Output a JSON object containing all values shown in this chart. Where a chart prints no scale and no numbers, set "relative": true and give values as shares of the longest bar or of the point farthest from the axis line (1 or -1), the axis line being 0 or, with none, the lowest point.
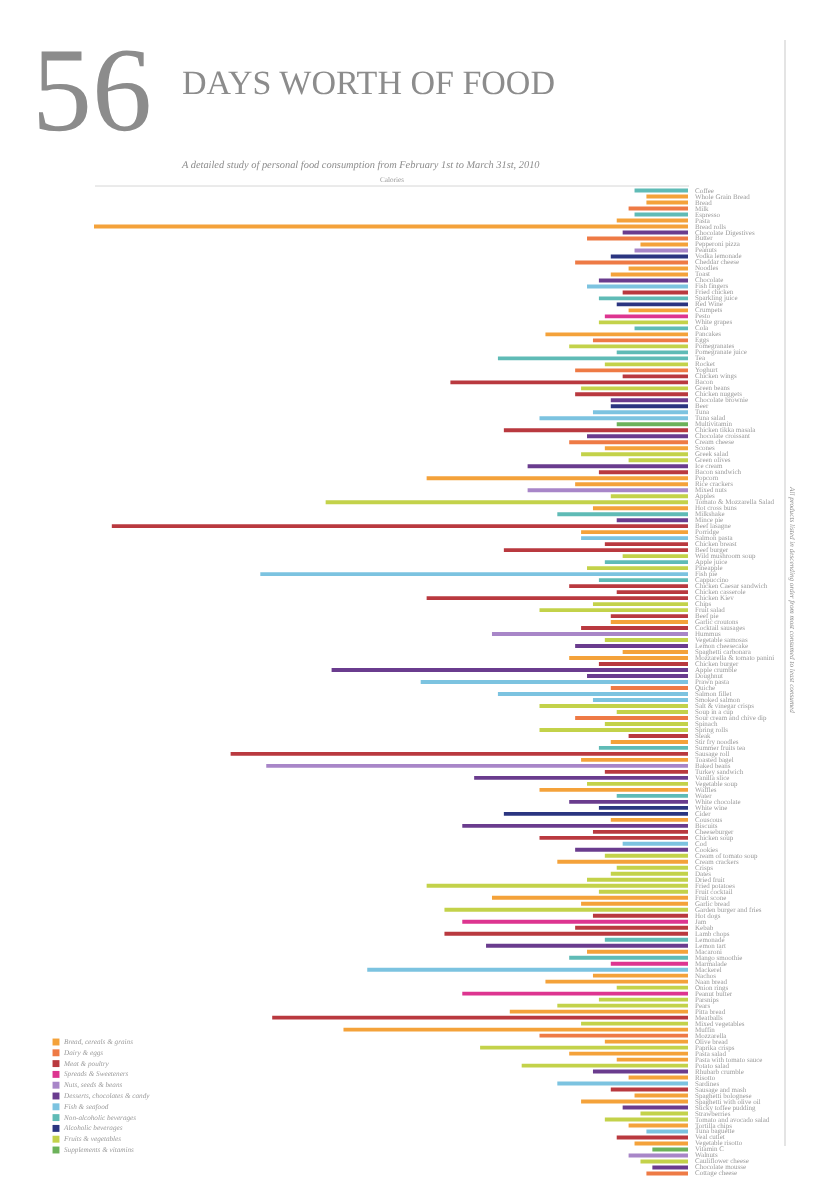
{
  "chart_data": {
    "type": "bar",
    "orientation": "horizontal",
    "relative": true,
    "title": "56 DAYS WORTH OF FOOD",
    "subtitle": "A detailed study of personal food consumption from February 1st to March 31st, 2010",
    "xlabel": "Calories",
    "annotations": [
      "All products listed in descending order from most consumed to least consumed"
    ],
    "legend": "bottom left",
    "categories": [
      "Coffee",
      "Whole Grain Bread",
      "Bread",
      "Milk",
      "Espresso",
      "Pasta",
      "Bread rolls",
      "Chocolate Digestives",
      "Butter",
      "Pepperoni pizza",
      "Peanuts",
      "Vodka lemonade",
      "Cheddar cheese",
      "Noodles",
      "Toast",
      "Chocolate",
      "Fish fingers",
      "Fried chicken",
      "Sparkling juice",
      "Red Wine",
      "Crumpets",
      "Pesto",
      "White grapes",
      "Cola",
      "Pancakes",
      "Eggs",
      "Pomegranates",
      "Pomegranate juice",
      "Tea",
      "Rocket",
      "Yoghurt",
      "Chicken wings",
      "Bacon",
      "Green beans",
      "Chicken nuggets",
      "Chocolate brownie",
      "Beer",
      "Tuna",
      "Tuna salad",
      "Multivitamin",
      "Chicken tikka masala",
      "Chocolate croissant",
      "Cream cheese",
      "Scones",
      "Greek salad",
      "Green olives",
      "Ice cream",
      "Bacon sandwich",
      "Popcorn",
      "Rice crackers",
      "Mixed nuts",
      "Apples",
      "Tomato & Mozzarella Salad",
      "Hot cross buns",
      "Milkshake",
      "Mince pie",
      "Beef lasagne",
      "Porridge",
      "Salmon pasta",
      "Chicken breast",
      "Beef burger",
      "Wild mushroom soup",
      "Apple juice",
      "Pineapple",
      "Fish pie",
      "Cappuccino",
      "Chicken Caesar sandwich",
      "Chicken casserole",
      "Chicken Kiev",
      "Chips",
      "Fruit salad",
      "Beef pie",
      "Garlic croutons",
      "Cocktail sausages",
      "Hummus",
      "Vegetable samosas",
      "Lemon cheesecake",
      "Spaghetti carbonara",
      "Mozzarella & tomato panini",
      "Chicken burger",
      "Apple crumble",
      "Doughnut",
      "Prawn pasta",
      "Quiche",
      "Salmon fillet",
      "Smoked salmon",
      "Salt & vinegar crisps",
      "Soup in a cup",
      "Sour cream and chive dip",
      "Spinach",
      "Spring rolls",
      "Steak",
      "Stir fry noodles",
      "Summer fruits tea",
      "Sausage roll",
      "Toasted bagel",
      "Baked beans",
      "Turkey sandwich",
      "Vanilla slice",
      "Vegetable soup",
      "Waffles",
      "Water",
      "White chocolate",
      "White wine",
      "Cider",
      "Couscous",
      "Biscuits",
      "Cheeseburger",
      "Chicken soup",
      "Cod",
      "Cookies",
      "Cream of tomato soup",
      "Cream crackers",
      "Crisps",
      "Dates",
      "Dried fruit",
      "Fried potatoes",
      "Fruit cocktail",
      "Fruit scone",
      "Garlic bread",
      "Garden burger and fries",
      "Hot dogs",
      "Jam",
      "Kebab",
      "Lamb chops",
      "Lemonade",
      "Lemon tart",
      "Macaroni",
      "Mango smoothie",
      "Marmalade",
      "Mackerel",
      "Nachos",
      "Naan bread",
      "Onion rings",
      "Peanut butter",
      "Parsnips",
      "Pears",
      "Pitta bread",
      "Meatballs",
      "Mixed vegetables",
      "Muffin",
      "Mozzarella",
      "Olive bread",
      "Paprika crisps",
      "Pasta salad",
      "Pasta with tomato sauce",
      "Potato salad",
      "Rhubarb crumble",
      "Risotto",
      "Sardines",
      "Sausage and mash",
      "Spaghetti bolognese",
      "Spaghetti with olive oil",
      "Sticky toffee pudding",
      "Strawberries",
      "Tomato and avocado salad",
      "Tortilla chips",
      "Tuna baguette",
      "Veal cutlet",
      "Vegetable risotto",
      "Vitamin C",
      "Walnuts",
      "Cauliflower cheese",
      "Chocolate mousse",
      "Cottage cheese"
    ],
    "series": [
      {
        "name": "Bread, cereals & grains",
        "color": "#f4a23a",
        "values": [
          null,
          0.07,
          0.07,
          null,
          null,
          0.12,
          1,
          null,
          null,
          0.08,
          null,
          null,
          null,
          0.1,
          0.13,
          null,
          null,
          null,
          null,
          null,
          0.1,
          null,
          null,
          null,
          0.24,
          null,
          null,
          null,
          null,
          null,
          null,
          null,
          null,
          null,
          null,
          null,
          null,
          null,
          null,
          null,
          null,
          null,
          null,
          0.14,
          null,
          null,
          null,
          null,
          0.44,
          0.19,
          null,
          null,
          null,
          0.16,
          null,
          null,
          null,
          0.18,
          null,
          null,
          null,
          null,
          null,
          null,
          null,
          null,
          null,
          null,
          null,
          null,
          null,
          null,
          0.13,
          null,
          null,
          null,
          null,
          0.11,
          0.2,
          null,
          null,
          null,
          null,
          null,
          null,
          null,
          null,
          null,
          null,
          null,
          null,
          null,
          0.13,
          null,
          null,
          0.18,
          null,
          null,
          null,
          null,
          0.25,
          null,
          null,
          null,
          null,
          0.13,
          null,
          null,
          null,
          null,
          null,
          null,
          0.22,
          null,
          null,
          null,
          null,
          null,
          0.33,
          0.18,
          null,
          null,
          null,
          null,
          null,
          null,
          null,
          0.17,
          null,
          null,
          null,
          0.16,
          0.24,
          null,
          null,
          null,
          null,
          0.3,
          null,
          null,
          0.58,
          null,
          0.14,
          null,
          0.2,
          0.12,
          null,
          null,
          0.1,
          null,
          null,
          0.09,
          0.18,
          null,
          null,
          null,
          0.1,
          null,
          null,
          0.09,
          null,
          null,
          null,
          null,
          null
        ]
      },
      {
        "name": "Dairy & eggs",
        "color": "#ee7a45",
        "values": [
          null,
          null,
          null,
          0.1,
          null,
          null,
          null,
          null,
          0.17,
          null,
          null,
          null,
          0.19,
          null,
          null,
          null,
          null,
          null,
          null,
          null,
          null,
          null,
          null,
          null,
          null,
          0.16,
          null,
          null,
          null,
          null,
          0.19,
          null,
          null,
          null,
          null,
          null,
          null,
          null,
          null,
          null,
          null,
          null,
          0.2,
          null,
          null,
          null,
          null,
          null,
          null,
          null,
          null,
          null,
          null,
          null,
          null,
          null,
          null,
          null,
          null,
          null,
          null,
          null,
          null,
          null,
          null,
          null,
          null,
          null,
          null,
          null,
          null,
          null,
          null,
          null,
          null,
          null,
          null,
          null,
          null,
          null,
          null,
          null,
          null,
          0.13,
          null,
          null,
          null,
          null,
          0.19,
          null,
          null,
          null,
          null,
          null,
          null,
          null,
          null,
          null,
          null,
          null,
          null,
          null,
          null,
          null,
          null,
          null,
          null,
          null,
          null,
          null,
          null,
          null,
          null,
          null,
          null,
          null,
          null,
          null,
          null,
          null,
          null,
          null,
          null,
          null,
          null,
          null,
          null,
          null,
          null,
          null,
          null,
          null,
          null,
          null,
          null,
          null,
          null,
          null,
          null,
          null,
          null,
          0.25,
          null,
          null,
          null,
          null,
          null,
          null,
          null,
          null,
          null,
          null,
          null,
          null,
          null,
          null,
          null,
          null,
          null,
          null,
          null,
          null,
          null,
          null,
          0.07
        ]
      },
      {
        "name": "Meat & poultry",
        "color": "#b9393f",
        "values": [
          null,
          null,
          null,
          null,
          null,
          null,
          null,
          null,
          null,
          null,
          null,
          null,
          null,
          null,
          null,
          null,
          null,
          0.11,
          null,
          null,
          null,
          null,
          null,
          null,
          null,
          null,
          null,
          null,
          null,
          null,
          null,
          0.11,
          0.4,
          null,
          0.19,
          null,
          null,
          null,
          null,
          null,
          0.31,
          null,
          null,
          null,
          null,
          null,
          null,
          0.15,
          null,
          null,
          null,
          null,
          null,
          null,
          null,
          null,
          0.97,
          null,
          null,
          0.14,
          0.31,
          null,
          null,
          null,
          null,
          null,
          0.2,
          0.12,
          0.44,
          null,
          null,
          0.13,
          null,
          0.18,
          null,
          null,
          null,
          null,
          null,
          0.15,
          null,
          null,
          null,
          null,
          null,
          null,
          null,
          null,
          null,
          null,
          null,
          0.1,
          null,
          null,
          0.77,
          null,
          null,
          0.14,
          null,
          null,
          null,
          null,
          null,
          null,
          null,
          null,
          null,
          0.16,
          0.25,
          null,
          null,
          null,
          null,
          null,
          null,
          null,
          null,
          null,
          null,
          null,
          null,
          0.16,
          null,
          0.19,
          0.41,
          null,
          null,
          null,
          null,
          null,
          null,
          null,
          null,
          null,
          null,
          null,
          null,
          null,
          0.7,
          null,
          null,
          null,
          null,
          null,
          null,
          null,
          null,
          null,
          null,
          null,
          0.13,
          null,
          null,
          null,
          null,
          null,
          null,
          null,
          0.12,
          null,
          null,
          null,
          null,
          null,
          null
        ]
      },
      {
        "name": "Spreads & Sweeteners",
        "color": "#dd3590",
        "values": [
          null,
          null,
          null,
          null,
          null,
          null,
          null,
          null,
          null,
          null,
          null,
          null,
          null,
          null,
          null,
          null,
          null,
          null,
          null,
          null,
          null,
          0.14,
          null,
          null,
          null,
          null,
          null,
          null,
          null,
          null,
          null,
          null,
          null,
          null,
          null,
          null,
          null,
          null,
          null,
          null,
          null,
          null,
          null,
          null,
          null,
          null,
          null,
          null,
          null,
          null,
          null,
          null,
          null,
          null,
          null,
          null,
          null,
          null,
          null,
          null,
          null,
          null,
          null,
          null,
          null,
          null,
          null,
          null,
          null,
          null,
          null,
          null,
          null,
          null,
          null,
          null,
          null,
          null,
          null,
          null,
          null,
          null,
          null,
          null,
          null,
          null,
          null,
          null,
          null,
          null,
          null,
          null,
          null,
          null,
          null,
          null,
          null,
          null,
          null,
          null,
          null,
          null,
          null,
          null,
          null,
          null,
          null,
          null,
          null,
          null,
          null,
          null,
          null,
          null,
          null,
          null,
          null,
          null,
          null,
          null,
          null,
          null,
          0.38,
          null,
          null,
          null,
          null,
          null,
          null,
          0.13,
          null,
          null,
          null,
          null,
          0.38,
          null,
          null,
          null,
          null,
          null,
          null,
          null,
          null,
          null,
          null,
          null,
          null,
          null,
          null,
          null,
          null,
          null,
          null,
          null,
          null,
          null,
          null,
          null,
          null,
          null,
          null,
          null,
          null,
          null,
          null
        ]
      },
      {
        "name": "Nuts, seeds & beans",
        "color": "#a886c8",
        "values": [
          null,
          null,
          null,
          null,
          null,
          null,
          null,
          null,
          null,
          null,
          0.09,
          null,
          null,
          null,
          null,
          null,
          null,
          null,
          null,
          null,
          null,
          null,
          null,
          null,
          null,
          null,
          null,
          null,
          null,
          null,
          null,
          null,
          null,
          null,
          null,
          null,
          null,
          null,
          null,
          null,
          null,
          null,
          null,
          null,
          null,
          null,
          null,
          null,
          null,
          null,
          0.27,
          null,
          null,
          null,
          null,
          null,
          null,
          null,
          null,
          null,
          null,
          null,
          null,
          null,
          null,
          null,
          null,
          null,
          null,
          null,
          null,
          null,
          null,
          null,
          0.33,
          null,
          null,
          null,
          null,
          null,
          null,
          null,
          null,
          null,
          null,
          null,
          null,
          null,
          null,
          null,
          null,
          null,
          null,
          null,
          null,
          null,
          0.71,
          null,
          null,
          null,
          null,
          null,
          null,
          null,
          null,
          null,
          null,
          null,
          null,
          null,
          null,
          null,
          null,
          null,
          null,
          null,
          null,
          null,
          null,
          null,
          null,
          null,
          null,
          null,
          null,
          null,
          null,
          null,
          null,
          null,
          null,
          null,
          null,
          null,
          null,
          null,
          null,
          null,
          null,
          null,
          null,
          null,
          null,
          null,
          null,
          null,
          null,
          null,
          null,
          null,
          null,
          null,
          null,
          null,
          null,
          null,
          null,
          null,
          null,
          null,
          null,
          0.1,
          null,
          null,
          null
        ]
      },
      {
        "name": "Desserts, chocolates & candy",
        "color": "#6a3c8e",
        "values": [
          null,
          null,
          null,
          null,
          null,
          null,
          null,
          0.11,
          null,
          null,
          null,
          null,
          null,
          null,
          null,
          0.15,
          null,
          null,
          null,
          null,
          null,
          null,
          null,
          null,
          null,
          null,
          null,
          null,
          null,
          null,
          null,
          null,
          null,
          null,
          null,
          0.13,
          null,
          null,
          null,
          null,
          null,
          0.17,
          null,
          null,
          null,
          null,
          0.27,
          null,
          null,
          null,
          null,
          null,
          null,
          null,
          null,
          0.12,
          null,
          null,
          null,
          null,
          null,
          null,
          null,
          null,
          null,
          null,
          null,
          null,
          null,
          null,
          null,
          null,
          null,
          null,
          null,
          null,
          0.19,
          null,
          null,
          null,
          0.6,
          0.17,
          null,
          null,
          null,
          null,
          null,
          null,
          null,
          null,
          null,
          null,
          null,
          null,
          null,
          null,
          null,
          null,
          0.36,
          null,
          null,
          null,
          0.2,
          null,
          null,
          null,
          0.38,
          null,
          null,
          null,
          0.19,
          null,
          null,
          null,
          null,
          null,
          null,
          null,
          null,
          null,
          null,
          null,
          null,
          null,
          null,
          null,
          0.34,
          null,
          null,
          null,
          null,
          null,
          null,
          null,
          null,
          null,
          null,
          null,
          null,
          null,
          null,
          null,
          null,
          null,
          null,
          null,
          null,
          0.16,
          null,
          null,
          null,
          null,
          null,
          0.11,
          null,
          null,
          null,
          null,
          null,
          null,
          null,
          null,
          null,
          0.06,
          null
        ]
      },
      {
        "name": "Fish & seafood",
        "color": "#7cc3e0",
        "values": [
          null,
          null,
          null,
          null,
          null,
          null,
          null,
          null,
          null,
          null,
          null,
          null,
          null,
          null,
          null,
          null,
          0.17,
          null,
          null,
          null,
          null,
          null,
          null,
          null,
          null,
          null,
          null,
          null,
          null,
          null,
          null,
          null,
          null,
          null,
          null,
          null,
          null,
          0.16,
          0.25,
          null,
          null,
          null,
          null,
          null,
          null,
          null,
          null,
          null,
          null,
          null,
          null,
          null,
          null,
          null,
          null,
          null,
          null,
          null,
          0.18,
          null,
          null,
          null,
          null,
          null,
          0.72,
          null,
          null,
          null,
          null,
          null,
          null,
          null,
          null,
          null,
          null,
          null,
          null,
          null,
          null,
          null,
          null,
          null,
          0.45,
          null,
          0.32,
          0.16,
          null,
          null,
          null,
          null,
          null,
          null,
          null,
          null,
          null,
          null,
          null,
          null,
          null,
          null,
          null,
          null,
          null,
          null,
          null,
          null,
          null,
          null,
          null,
          0.11,
          null,
          null,
          null,
          null,
          null,
          null,
          null,
          null,
          null,
          null,
          null,
          null,
          null,
          null,
          null,
          null,
          null,
          null,
          null,
          null,
          0.54,
          null,
          null,
          null,
          null,
          null,
          null,
          null,
          null,
          null,
          null,
          null,
          null,
          null,
          null,
          null,
          null,
          null,
          null,
          0.22,
          null,
          null,
          null,
          null,
          null,
          null,
          null,
          0.07,
          null,
          null,
          null,
          null,
          null,
          null,
          null
        ]
      },
      {
        "name": "Non-alcoholic beverages",
        "color": "#5fbbb6",
        "values": [
          0.09,
          null,
          null,
          null,
          0.09,
          null,
          null,
          null,
          null,
          null,
          null,
          null,
          null,
          null,
          null,
          null,
          null,
          null,
          0.15,
          null,
          null,
          null,
          null,
          0.09,
          null,
          null,
          null,
          0.12,
          0.32,
          null,
          null,
          null,
          null,
          null,
          null,
          null,
          null,
          null,
          null,
          null,
          null,
          null,
          null,
          null,
          null,
          null,
          null,
          null,
          null,
          null,
          null,
          null,
          null,
          null,
          0.22,
          null,
          null,
          null,
          null,
          null,
          null,
          null,
          0.14,
          null,
          null,
          0.15,
          null,
          null,
          null,
          null,
          null,
          null,
          null,
          null,
          null,
          null,
          null,
          null,
          null,
          null,
          null,
          null,
          null,
          null,
          null,
          null,
          null,
          null,
          null,
          null,
          null,
          null,
          null,
          0.15,
          null,
          null,
          null,
          null,
          null,
          null,
          null,
          0.12,
          null,
          null,
          null,
          null,
          null,
          null,
          null,
          null,
          null,
          null,
          null,
          null,
          null,
          null,
          null,
          null,
          null,
          null,
          null,
          null,
          null,
          null,
          null,
          0.14,
          null,
          null,
          0.2,
          null,
          null,
          null,
          null,
          null,
          null,
          null,
          null,
          null,
          null,
          null,
          null,
          null,
          null,
          null,
          null,
          null,
          null,
          null,
          null,
          null,
          null,
          null,
          null,
          null,
          null,
          null,
          null,
          null,
          null,
          null,
          null,
          null,
          null,
          null,
          null
        ]
      },
      {
        "name": "Alcoholic beverages",
        "color": "#2b3580",
        "values": [
          null,
          null,
          null,
          null,
          null,
          null,
          null,
          null,
          null,
          null,
          null,
          0.13,
          null,
          null,
          null,
          null,
          null,
          null,
          null,
          0.12,
          null,
          null,
          null,
          null,
          null,
          null,
          null,
          null,
          null,
          null,
          null,
          null,
          null,
          null,
          null,
          null,
          0.13,
          null,
          null,
          null,
          null,
          null,
          null,
          null,
          null,
          null,
          null,
          null,
          null,
          null,
          null,
          null,
          null,
          null,
          null,
          null,
          null,
          null,
          null,
          null,
          null,
          null,
          null,
          null,
          null,
          null,
          null,
          null,
          null,
          null,
          null,
          null,
          null,
          null,
          null,
          null,
          null,
          null,
          null,
          null,
          null,
          null,
          null,
          null,
          null,
          null,
          null,
          null,
          null,
          null,
          null,
          null,
          null,
          null,
          null,
          null,
          null,
          null,
          null,
          null,
          null,
          null,
          null,
          0.15,
          0.31,
          null,
          null,
          null,
          null,
          null,
          null,
          null,
          null,
          null,
          null,
          null,
          null,
          null,
          null,
          null,
          null,
          null,
          null,
          null,
          null,
          null,
          null,
          null,
          null,
          null,
          null,
          null,
          null,
          null,
          null,
          null,
          null,
          null,
          null,
          null,
          null,
          null,
          null,
          null,
          null,
          null,
          null,
          null,
          null,
          null,
          null,
          null,
          null,
          null,
          null,
          null,
          null,
          null,
          null,
          null,
          null,
          null,
          null,
          null,
          null
        ]
      },
      {
        "name": "Fruits & vegetables",
        "color": "#c3d24a",
        "values": [
          null,
          null,
          null,
          null,
          null,
          null,
          null,
          null,
          null,
          null,
          null,
          null,
          null,
          null,
          null,
          null,
          null,
          null,
          null,
          null,
          null,
          null,
          0.15,
          null,
          null,
          null,
          0.2,
          null,
          null,
          0.14,
          null,
          null,
          null,
          0.18,
          null,
          null,
          null,
          null,
          null,
          null,
          null,
          null,
          null,
          null,
          0.18,
          0.1,
          null,
          null,
          null,
          null,
          null,
          0.13,
          0.61,
          null,
          null,
          null,
          null,
          null,
          null,
          null,
          null,
          0.11,
          null,
          0.17,
          null,
          null,
          null,
          null,
          null,
          0.16,
          0.25,
          null,
          null,
          null,
          null,
          0.14,
          null,
          null,
          null,
          null,
          null,
          null,
          null,
          null,
          null,
          null,
          0.25,
          0.12,
          null,
          0.14,
          0.25,
          null,
          null,
          null,
          null,
          null,
          null,
          null,
          null,
          0.17,
          null,
          null,
          null,
          null,
          null,
          null,
          null,
          null,
          null,
          null,
          null,
          0.14,
          null,
          0.12,
          0.13,
          0.17,
          0.44,
          0.15,
          null,
          null,
          0.41,
          null,
          null,
          null,
          null,
          null,
          null,
          null,
          null,
          null,
          null,
          null,
          null,
          0.12,
          null,
          0.15,
          0.22,
          null,
          null,
          0.18,
          null,
          null,
          null,
          0.35,
          null,
          null,
          0.28,
          null,
          null,
          null,
          null,
          null,
          null,
          null,
          0.08,
          0.14,
          null,
          null,
          null,
          null,
          null,
          null,
          0.08,
          null,
          null
        ]
      },
      {
        "name": "Supplements & vitamins",
        "color": "#6cb25a",
        "values": [
          null,
          null,
          null,
          null,
          null,
          null,
          null,
          null,
          null,
          null,
          null,
          null,
          null,
          null,
          null,
          null,
          null,
          null,
          null,
          null,
          null,
          null,
          null,
          null,
          null,
          null,
          null,
          null,
          null,
          null,
          null,
          null,
          null,
          null,
          null,
          null,
          null,
          null,
          null,
          0.12,
          null,
          null,
          null,
          null,
          null,
          null,
          null,
          null,
          null,
          null,
          null,
          null,
          null,
          null,
          null,
          null,
          null,
          null,
          null,
          null,
          null,
          null,
          null,
          null,
          null,
          null,
          null,
          null,
          null,
          null,
          null,
          null,
          null,
          null,
          null,
          null,
          null,
          null,
          null,
          null,
          null,
          null,
          null,
          null,
          null,
          null,
          null,
          null,
          null,
          null,
          null,
          null,
          null,
          null,
          null,
          null,
          null,
          null,
          null,
          null,
          null,
          null,
          null,
          null,
          null,
          null,
          null,
          null,
          null,
          null,
          null,
          null,
          null,
          null,
          null,
          null,
          null,
          null,
          null,
          null,
          null,
          null,
          null,
          null,
          null,
          null,
          null,
          null,
          null,
          null,
          null,
          null,
          null,
          null,
          null,
          null,
          null,
          null,
          null,
          null,
          null,
          null,
          null,
          null,
          null,
          null,
          null,
          null,
          null,
          null,
          null,
          null,
          null,
          null,
          null,
          null,
          null,
          null,
          null,
          null,
          0.06,
          null,
          null,
          null,
          null
        ]
      }
    ]
  }
}
